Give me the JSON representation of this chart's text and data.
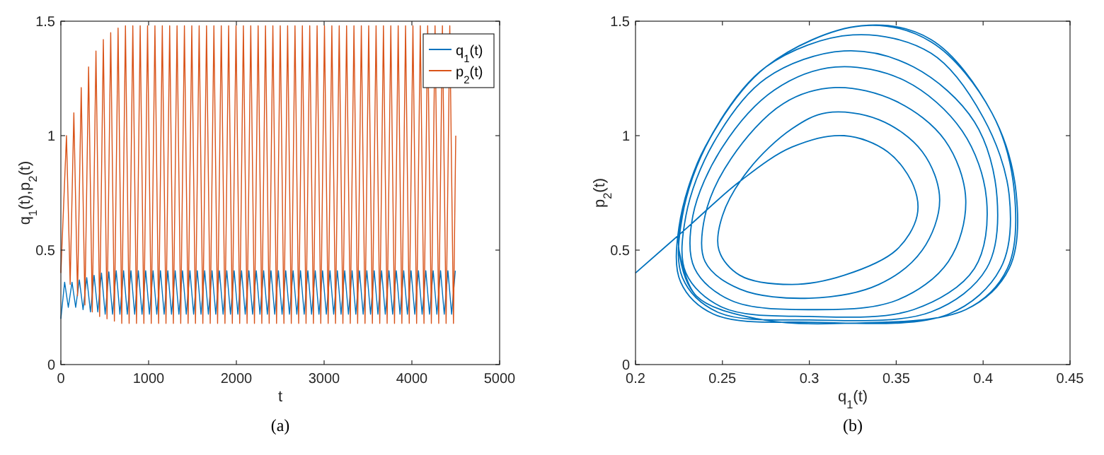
{
  "chart_data": [
    {
      "type": "line",
      "xlabel": "t",
      "ylabel": "q$_{1}$(t),p$_{2}$(t)",
      "annotations": [
        "(a)"
      ],
      "xlim": [
        0,
        5000
      ],
      "xticks": [
        0,
        1000,
        2000,
        3000,
        4000,
        5000
      ],
      "ylim": [
        0,
        1.5
      ],
      "yticks": [
        0,
        0.5,
        1,
        1.5
      ],
      "legend": "top right",
      "series": [
        {
          "name": "q$_{1}$(t)",
          "color": "#0072bd",
          "x": [
            0,
            43,
            85,
            127,
            169,
            211,
            253,
            295,
            337,
            379,
            421,
            463,
            505,
            547,
            589,
            631,
            673,
            715,
            757,
            799,
            841,
            883,
            925,
            967,
            1009,
            1051,
            1093,
            1135,
            1177,
            1219,
            1261,
            1303,
            1345,
            1387,
            1429,
            1471,
            1513,
            1555,
            1597,
            1639,
            1681,
            1723,
            1765,
            1807,
            1849,
            1891,
            1933,
            1975,
            2017,
            2059,
            2101,
            2143,
            2185,
            2227,
            2269,
            2311,
            2353,
            2395,
            2437,
            2479,
            2521,
            2563,
            2605,
            2647,
            2689,
            2731,
            2773,
            2815,
            2857,
            2899,
            2941,
            2983,
            3025,
            3067,
            3109,
            3151,
            3193,
            3235,
            3277,
            3319,
            3361,
            3403,
            3445,
            3487,
            3529,
            3571,
            3613,
            3655,
            3697,
            3739,
            3781,
            3823,
            3865,
            3907,
            3949,
            3991,
            4033,
            4075,
            4117,
            4159,
            4201,
            4243,
            4285,
            4327,
            4369,
            4411,
            4453,
            4495
          ],
          "values": [
            0.2,
            0.36,
            0.25,
            0.36,
            0.25,
            0.37,
            0.24,
            0.38,
            0.23,
            0.39,
            0.23,
            0.4,
            0.22,
            0.405,
            0.22,
            0.41,
            0.22,
            0.41,
            0.22,
            0.41,
            0.22,
            0.41,
            0.22,
            0.41,
            0.22,
            0.41,
            0.22,
            0.41,
            0.22,
            0.41,
            0.22,
            0.41,
            0.22,
            0.41,
            0.22,
            0.41,
            0.22,
            0.41,
            0.22,
            0.41,
            0.22,
            0.41,
            0.22,
            0.41,
            0.22,
            0.41,
            0.22,
            0.41,
            0.22,
            0.41,
            0.22,
            0.41,
            0.22,
            0.41,
            0.22,
            0.41,
            0.22,
            0.41,
            0.22,
            0.41,
            0.22,
            0.41,
            0.22,
            0.41,
            0.22,
            0.41,
            0.22,
            0.41,
            0.22,
            0.41,
            0.22,
            0.41,
            0.22,
            0.41,
            0.22,
            0.41,
            0.22,
            0.41,
            0.22,
            0.41,
            0.22,
            0.41,
            0.22,
            0.41,
            0.22,
            0.41,
            0.22,
            0.41,
            0.22,
            0.41,
            0.22,
            0.41,
            0.22,
            0.41,
            0.22,
            0.41,
            0.22,
            0.41,
            0.22,
            0.41,
            0.22,
            0.41,
            0.22,
            0.41,
            0.22,
            0.41,
            0.22,
            0.41
          ]
        },
        {
          "name": "p$_{2}$(t)",
          "color": "#d95319",
          "x": [
            0,
            64,
            106,
            148,
            190,
            232,
            274,
            316,
            358,
            400,
            442,
            484,
            526,
            568,
            610,
            652,
            694,
            736,
            778,
            820,
            862,
            904,
            946,
            988,
            1030,
            1072,
            1114,
            1156,
            1198,
            1240,
            1282,
            1324,
            1366,
            1408,
            1450,
            1492,
            1534,
            1576,
            1618,
            1660,
            1702,
            1744,
            1786,
            1828,
            1870,
            1912,
            1954,
            1996,
            2038,
            2080,
            2122,
            2164,
            2206,
            2248,
            2290,
            2332,
            2374,
            2416,
            2458,
            2500,
            2542,
            2584,
            2626,
            2668,
            2710,
            2752,
            2794,
            2836,
            2878,
            2920,
            2962,
            3004,
            3046,
            3088,
            3130,
            3172,
            3214,
            3256,
            3298,
            3340,
            3382,
            3424,
            3466,
            3508,
            3550,
            3592,
            3634,
            3676,
            3718,
            3760,
            3802,
            3844,
            3886,
            3928,
            3970,
            4012,
            4054,
            4096,
            4138,
            4180,
            4222,
            4264,
            4306,
            4348,
            4390,
            4432,
            4474,
            4500
          ],
          "values": [
            0.4,
            1.0,
            0.35,
            1.1,
            0.3,
            1.21,
            0.26,
            1.3,
            0.23,
            1.37,
            0.21,
            1.42,
            0.2,
            1.45,
            0.19,
            1.47,
            0.18,
            1.48,
            0.18,
            1.48,
            0.18,
            1.48,
            0.18,
            1.48,
            0.18,
            1.48,
            0.18,
            1.48,
            0.18,
            1.48,
            0.18,
            1.48,
            0.18,
            1.48,
            0.18,
            1.48,
            0.18,
            1.48,
            0.18,
            1.48,
            0.18,
            1.48,
            0.18,
            1.48,
            0.18,
            1.48,
            0.18,
            1.48,
            0.18,
            1.48,
            0.18,
            1.48,
            0.18,
            1.48,
            0.18,
            1.48,
            0.18,
            1.48,
            0.18,
            1.48,
            0.18,
            1.48,
            0.18,
            1.48,
            0.18,
            1.48,
            0.18,
            1.48,
            0.18,
            1.48,
            0.18,
            1.48,
            0.18,
            1.48,
            0.18,
            1.48,
            0.18,
            1.48,
            0.18,
            1.48,
            0.18,
            1.48,
            0.18,
            1.48,
            0.18,
            1.48,
            0.18,
            1.48,
            0.18,
            1.48,
            0.18,
            1.48,
            0.18,
            1.48,
            0.18,
            1.48,
            0.18,
            1.48,
            0.18,
            1.48,
            0.18,
            1.48,
            0.18,
            1.48,
            0.18,
            1.48,
            0.18,
            1.0
          ]
        }
      ]
    },
    {
      "type": "line",
      "xlabel": "q$_{1}$(t)",
      "ylabel": "p$_{2}$(t)",
      "annotations": [
        "(b)"
      ],
      "xlim": [
        0.2,
        0.45
      ],
      "xticks": [
        0.2,
        0.25,
        0.3,
        0.35,
        0.4,
        0.45
      ],
      "ylim": [
        0,
        1.5
      ],
      "yticks": [
        0,
        0.5,
        1,
        1.5
      ],
      "series": [
        {
          "color": "#0072bd",
          "x": [
            0.2,
            0.23,
            0.26,
            0.29,
            0.32,
            0.345,
            0.36,
            0.362,
            0.35,
            0.32,
            0.29,
            0.26,
            0.248,
            0.25,
            0.265,
            0.29,
            0.31,
            0.34,
            0.365,
            0.375,
            0.365,
            0.34,
            0.3,
            0.26,
            0.24,
            0.24,
            0.255,
            0.285,
            0.315,
            0.35,
            0.378,
            0.39,
            0.38,
            0.35,
            0.3,
            0.255,
            0.234,
            0.233,
            0.25,
            0.28,
            0.315,
            0.355,
            0.388,
            0.402,
            0.395,
            0.36,
            0.3,
            0.25,
            0.229,
            0.229,
            0.245,
            0.275,
            0.32,
            0.36,
            0.395,
            0.408,
            0.402,
            0.37,
            0.3,
            0.247,
            0.227,
            0.227,
            0.243,
            0.275,
            0.325,
            0.37,
            0.4,
            0.415,
            0.41,
            0.38,
            0.3,
            0.245,
            0.226,
            0.225,
            0.24,
            0.275,
            0.33,
            0.37,
            0.405,
            0.418,
            0.414,
            0.39,
            0.32,
            0.27,
            0.235,
            0.225,
            0.228,
            0.24,
            0.275,
            0.33,
            0.37,
            0.405,
            0.419,
            0.415,
            0.39,
            0.32,
            0.27,
            0.235,
            0.225
          ],
          "values": [
            0.4,
            0.6,
            0.8,
            0.95,
            1.0,
            0.93,
            0.78,
            0.65,
            0.5,
            0.39,
            0.35,
            0.39,
            0.5,
            0.65,
            0.85,
            1.03,
            1.1,
            1.07,
            0.93,
            0.72,
            0.5,
            0.35,
            0.29,
            0.33,
            0.45,
            0.65,
            0.9,
            1.14,
            1.21,
            1.15,
            0.98,
            0.72,
            0.45,
            0.28,
            0.24,
            0.28,
            0.42,
            0.65,
            0.95,
            1.2,
            1.3,
            1.24,
            1.02,
            0.72,
            0.42,
            0.24,
            0.21,
            0.25,
            0.4,
            0.65,
            0.97,
            1.25,
            1.37,
            1.3,
            1.06,
            0.73,
            0.42,
            0.23,
            0.195,
            0.23,
            0.38,
            0.65,
            0.99,
            1.3,
            1.44,
            1.36,
            1.08,
            0.74,
            0.42,
            0.22,
            0.185,
            0.22,
            0.36,
            0.6,
            0.95,
            1.3,
            1.48,
            1.41,
            1.1,
            0.75,
            0.42,
            0.24,
            0.18,
            0.2,
            0.3,
            0.5,
            0.7,
            0.95,
            1.3,
            1.48,
            1.42,
            1.1,
            0.75,
            0.42,
            0.24,
            0.18,
            0.2,
            0.3,
            0.5
          ]
        }
      ]
    }
  ]
}
